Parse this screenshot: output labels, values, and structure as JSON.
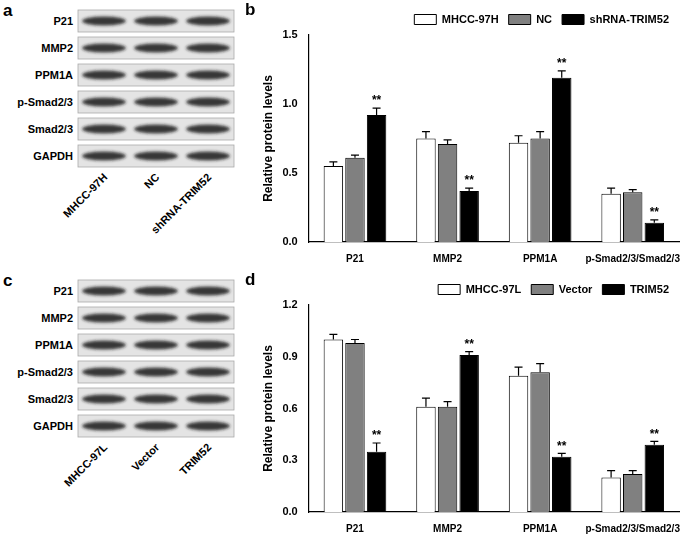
{
  "chart_data": [
    {
      "type": "bar",
      "panel": "b",
      "categories": [
        "P21",
        "MMP2",
        "PPM1A",
        "p-Smad2/3/Smad2/3"
      ],
      "ylabel": "Relative protein levels",
      "ylim": [
        0,
        1.5
      ],
      "yticks": [
        {
          "value": 0,
          "label": "0.0"
        },
        0.5,
        {
          "value": 1,
          "label": "1.0"
        },
        1.5
      ],
      "grid": false,
      "legend": "upper right",
      "series": [
        {
          "name": "MHCC-97H",
          "color": "#ffffff",
          "values": [
            0.55,
            0.75,
            0.72,
            0.35
          ],
          "errors": [
            0.03,
            0.05,
            0.05,
            0.04
          ],
          "annotations": [
            null,
            null,
            null,
            null
          ]
        },
        {
          "name": "NC",
          "color": "#808080",
          "values": [
            0.61,
            0.71,
            0.75,
            0.36
          ],
          "errors": [
            0.02,
            0.03,
            0.05,
            0.02
          ],
          "annotations": [
            null,
            null,
            null,
            null
          ]
        },
        {
          "name": "shRNA-TRIM52",
          "color": "#000000",
          "values": [
            0.92,
            0.37,
            1.19,
            0.14
          ],
          "errors": [
            0.05,
            0.02,
            0.05,
            0.02
          ],
          "annotations": [
            "**",
            "**",
            "**",
            "**"
          ]
        }
      ]
    },
    {
      "type": "bar",
      "panel": "d",
      "categories": [
        "P21",
        "MMP2",
        "PPM1A",
        "p-Smad2/3/Smad2/3"
      ],
      "ylabel": "Relative protein levels",
      "ylim": [
        0,
        1.2
      ],
      "yticks": [
        {
          "value": 0,
          "label": "0.0"
        },
        0.3,
        0.6,
        0.9,
        1.2
      ],
      "grid": false,
      "legend": "upper right",
      "series": [
        {
          "name": "MHCC-97L",
          "color": "#ffffff",
          "values": [
            1.0,
            0.61,
            0.79,
            0.2
          ],
          "errors": [
            0.03,
            0.05,
            0.05,
            0.04
          ],
          "annotations": [
            null,
            null,
            null,
            null
          ]
        },
        {
          "name": "Vector",
          "color": "#808080",
          "values": [
            0.98,
            0.61,
            0.81,
            0.22
          ],
          "errors": [
            0.02,
            0.03,
            0.05,
            0.02
          ],
          "annotations": [
            null,
            null,
            null,
            null
          ]
        },
        {
          "name": "TRIM52",
          "color": "#000000",
          "values": [
            0.35,
            0.91,
            0.32,
            0.39
          ],
          "errors": [
            0.05,
            0.02,
            0.02,
            0.02
          ],
          "annotations": [
            "**",
            "**",
            "**",
            "**"
          ]
        }
      ]
    }
  ],
  "blots": [
    {
      "panel": "a",
      "rows": [
        "P21",
        "MMP2",
        "PPM1A",
        "p-Smad2/3",
        "Smad2/3",
        "GAPDH"
      ],
      "lanes": [
        "MHCC-97H",
        "NC",
        "shRNA-TRIM52"
      ]
    },
    {
      "panel": "c",
      "rows": [
        "P21",
        "MMP2",
        "PPM1A",
        "p-Smad2/3",
        "Smad2/3",
        "GAPDH"
      ],
      "lanes": [
        "MHCC-97L",
        "Vector",
        "TRIM52"
      ]
    }
  ]
}
